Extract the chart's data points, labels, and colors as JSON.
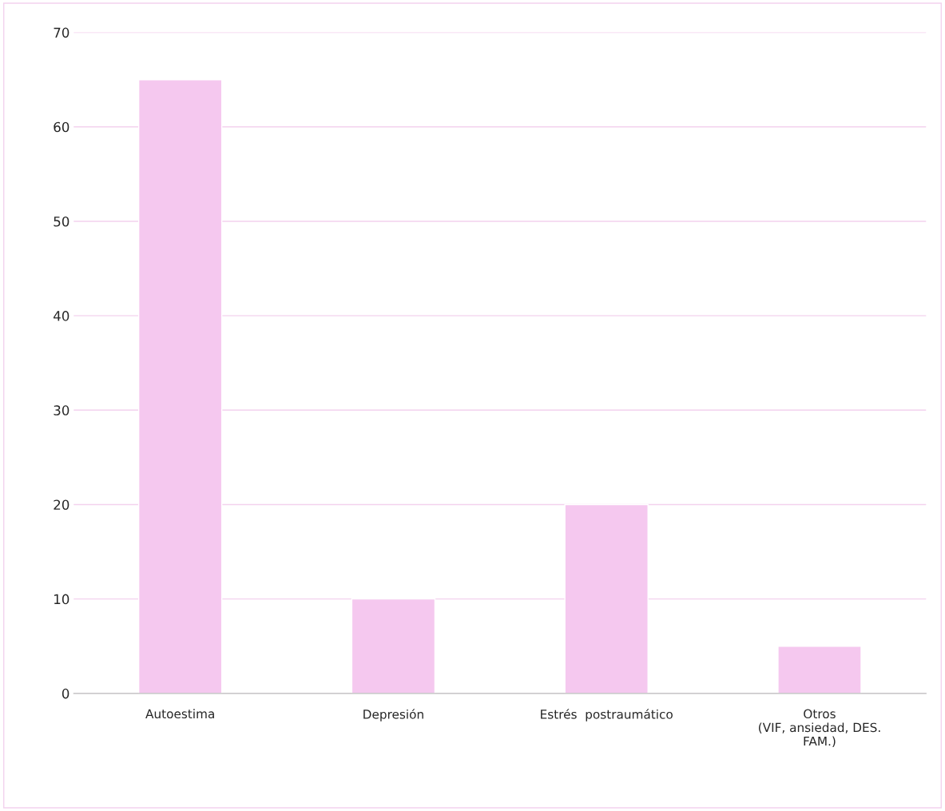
{
  "chart_data": {
    "type": "bar",
    "categories": [
      "Autoestima",
      "Depresión",
      "Estrés  postraumático",
      "Otros\n(VIF, ansiedad, DES.\nFAM.)"
    ],
    "values": [
      65,
      10,
      20,
      5
    ],
    "color": "#f5c8ef",
    "ylim": [
      0,
      70
    ],
    "yticks": [
      0,
      10,
      20,
      30,
      40,
      50,
      60,
      70
    ],
    "grid": "y",
    "legend": false
  }
}
